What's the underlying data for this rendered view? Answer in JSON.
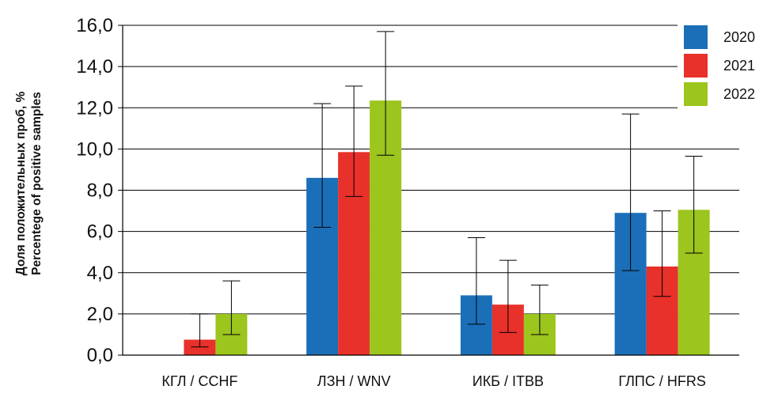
{
  "chart_data": {
    "type": "bar",
    "title": "",
    "ylabel_line1": "Доля положительных проб, %",
    "ylabel_line2": "Percentege of positive samples",
    "xlabel": "",
    "categories": [
      "КГЛ / CCHF",
      "ЛЗН / WNV",
      "ИКБ / ITBB",
      "ГЛПС / HFRS"
    ],
    "ylim": [
      0,
      16
    ],
    "yticks": [
      "0,0",
      "2,0",
      "4,0",
      "6,0",
      "8,0",
      "10,0",
      "12,0",
      "14,0",
      "16,0"
    ],
    "ytick_values": [
      0,
      2,
      4,
      6,
      8,
      10,
      12,
      14,
      16
    ],
    "grid": true,
    "legend_position": "top-right",
    "series": [
      {
        "name": "2020",
        "color": "#1b6fb8",
        "values": [
          0,
          8.6,
          2.9,
          6.9
        ],
        "error_low": [
          null,
          6.2,
          1.5,
          4.1
        ],
        "error_high": [
          null,
          12.2,
          5.7,
          11.7
        ]
      },
      {
        "name": "2021",
        "color": "#e8312a",
        "values": [
          0.75,
          9.85,
          2.45,
          4.3
        ],
        "error_low": [
          0.4,
          7.7,
          1.1,
          2.85
        ],
        "error_high": [
          2.0,
          13.05,
          4.6,
          7.0
        ]
      },
      {
        "name": "2022",
        "color": "#9cc51d",
        "values": [
          2.0,
          12.35,
          2.0,
          7.05
        ],
        "error_low": [
          1.0,
          9.7,
          1.0,
          4.95
        ],
        "error_high": [
          3.6,
          15.7,
          3.4,
          9.65
        ]
      }
    ]
  }
}
